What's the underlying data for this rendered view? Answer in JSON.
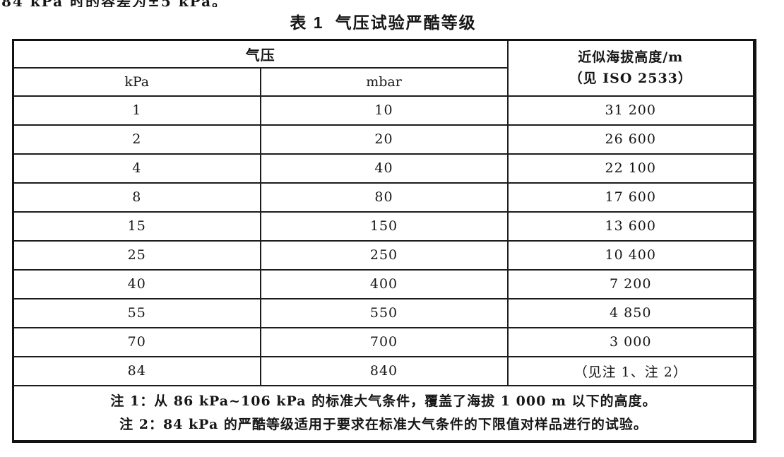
{
  "page": {
    "clipped_top_line": "84 kPa 时的容差为±5 kPa。",
    "title_prefix": "表 1",
    "title": "气压试验严酷等级"
  },
  "table": {
    "header": {
      "pressure_group": "气压",
      "kpa": "kPa",
      "mbar": "mbar",
      "altitude_line1": "近似海拔高度/m",
      "altitude_line2": "（见 ISO 2533）"
    },
    "rows": [
      {
        "kpa": "1",
        "mbar": "10",
        "altitude": "31 200"
      },
      {
        "kpa": "2",
        "mbar": "20",
        "altitude": "26 600"
      },
      {
        "kpa": "4",
        "mbar": "40",
        "altitude": "22 100"
      },
      {
        "kpa": "8",
        "mbar": "80",
        "altitude": "17 600"
      },
      {
        "kpa": "15",
        "mbar": "150",
        "altitude": "13 600"
      },
      {
        "kpa": "25",
        "mbar": "250",
        "altitude": "10 400"
      },
      {
        "kpa": "40",
        "mbar": "400",
        "altitude": "7 200"
      },
      {
        "kpa": "55",
        "mbar": "550",
        "altitude": "4 850"
      },
      {
        "kpa": "70",
        "mbar": "700",
        "altitude": "3 000"
      },
      {
        "kpa": "84",
        "mbar": "840",
        "altitude": "（见注 1、注 2）"
      }
    ],
    "notes": [
      "注 1：从 86 kPa~106 kPa 的标准大气条件，覆盖了海拔 1 000 m 以下的高度。",
      "注 2：84 kPa 的严酷等级适用于要求在标准大气条件的下限值对样品进行的试验。"
    ]
  }
}
